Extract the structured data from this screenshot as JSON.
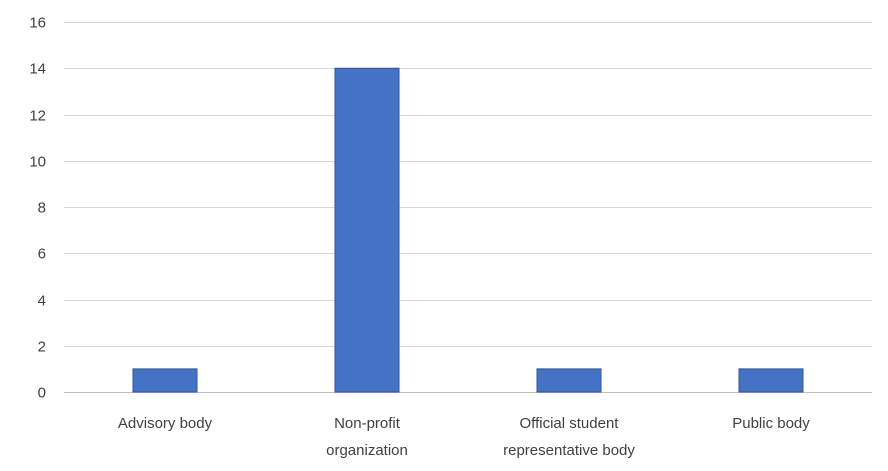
{
  "chart_data": {
    "type": "bar",
    "title": "",
    "xlabel": "",
    "ylabel": "",
    "categories": [
      [
        "Advisory body"
      ],
      [
        "Non-profit",
        "organization"
      ],
      [
        "Official student",
        "representative body"
      ],
      [
        "Public body"
      ]
    ],
    "values": [
      1,
      14,
      1,
      1
    ],
    "ylim": [
      0,
      16
    ],
    "yticks": [
      0,
      2,
      4,
      6,
      8,
      10,
      12,
      14,
      16
    ],
    "grid": true,
    "legend": "none",
    "bar_color": "#4472c4"
  }
}
